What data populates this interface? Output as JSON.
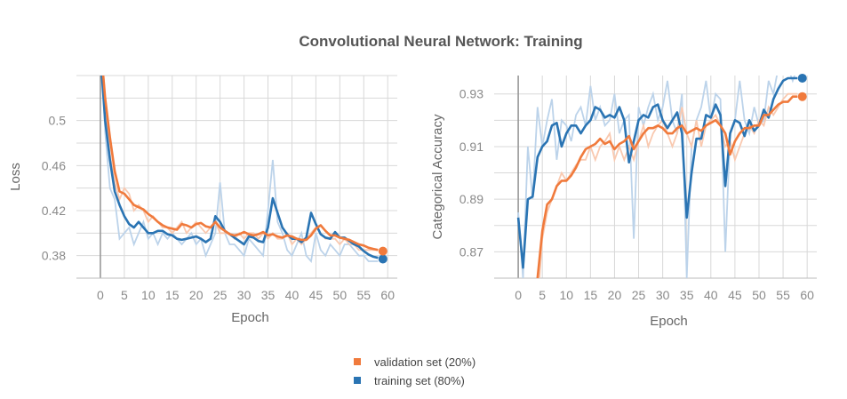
{
  "title": "Convolutional Neural Network: Training",
  "colors": {
    "validation": "#f07a3c",
    "training": "#2a74b3",
    "validation_raw": "#f9c9b0",
    "training_raw": "#bcd3ea",
    "grid": "#d8d8d8",
    "zero_line": "#999999"
  },
  "legend": {
    "placement": "bottom-center",
    "items": [
      {
        "label": "validation set (20%)",
        "color": "#f07a3c"
      },
      {
        "label": "training set (80%)",
        "color": "#2a74b3"
      }
    ]
  },
  "chart_data": [
    {
      "type": "line",
      "xlabel": "Epoch",
      "ylabel": "Loss",
      "xlim": [
        -5,
        62
      ],
      "ylim": [
        0.36,
        0.54
      ],
      "xticks": [
        0,
        5,
        10,
        15,
        20,
        25,
        30,
        35,
        40,
        45,
        50,
        55,
        60
      ],
      "yticks": [
        0.38,
        0.42,
        0.46,
        0.5
      ],
      "ytick_labels": [
        "0.38",
        "0.42",
        "0.46",
        "0.5"
      ],
      "grid": true,
      "series": [
        {
          "name": "training set (80%)",
          "color": "#2a74b3",
          "raw": [
            0.58,
            0.49,
            0.44,
            0.43,
            0.395,
            0.4,
            0.405,
            0.39,
            0.4,
            0.41,
            0.395,
            0.4,
            0.39,
            0.4,
            0.395,
            0.4,
            0.395,
            0.39,
            0.395,
            0.4,
            0.39,
            0.395,
            0.38,
            0.39,
            0.4,
            0.445,
            0.4,
            0.39,
            0.39,
            0.385,
            0.38,
            0.395,
            0.39,
            0.385,
            0.38,
            0.42,
            0.465,
            0.41,
            0.4,
            0.385,
            0.38,
            0.39,
            0.4,
            0.38,
            0.375,
            0.4,
            0.385,
            0.38,
            0.39,
            0.385,
            0.38,
            0.39,
            0.39,
            0.385,
            0.38,
            0.38,
            0.375,
            0.375,
            0.375
          ],
          "smoothed": [
            0.56,
            0.5,
            0.465,
            0.437,
            0.425,
            0.415,
            0.408,
            0.405,
            0.41,
            0.405,
            0.4,
            0.4,
            0.402,
            0.402,
            0.399,
            0.398,
            0.395,
            0.394,
            0.395,
            0.396,
            0.397,
            0.395,
            0.392,
            0.395,
            0.415,
            0.41,
            0.402,
            0.399,
            0.396,
            0.393,
            0.39,
            0.397,
            0.396,
            0.393,
            0.392,
            0.405,
            0.431,
            0.418,
            0.405,
            0.399,
            0.395,
            0.395,
            0.392,
            0.396,
            0.418,
            0.408,
            0.399,
            0.396,
            0.395,
            0.401,
            0.396,
            0.396,
            0.393,
            0.39,
            0.388,
            0.384,
            0.381,
            0.379,
            0.378
          ],
          "final_marker": [
            59,
            0.377
          ]
        },
        {
          "name": "validation set (20%)",
          "color": "#f07a3c",
          "raw": [
            0.58,
            0.52,
            0.47,
            0.445,
            0.43,
            0.44,
            0.435,
            0.42,
            0.425,
            0.42,
            0.41,
            0.415,
            0.41,
            0.405,
            0.405,
            0.4,
            0.405,
            0.41,
            0.4,
            0.405,
            0.41,
            0.405,
            0.4,
            0.405,
            0.41,
            0.4,
            0.4,
            0.4,
            0.395,
            0.4,
            0.395,
            0.4,
            0.4,
            0.395,
            0.4,
            0.395,
            0.4,
            0.395,
            0.395,
            0.4,
            0.39,
            0.395,
            0.39,
            0.395,
            0.4,
            0.405,
            0.4,
            0.395,
            0.395,
            0.395,
            0.39,
            0.395,
            0.39,
            0.39,
            0.385,
            0.385,
            0.385,
            0.385,
            0.385
          ],
          "smoothed": [
            0.57,
            0.52,
            0.485,
            0.455,
            0.437,
            0.435,
            0.43,
            0.425,
            0.423,
            0.421,
            0.417,
            0.414,
            0.41,
            0.407,
            0.405,
            0.404,
            0.403,
            0.408,
            0.407,
            0.405,
            0.408,
            0.409,
            0.406,
            0.405,
            0.41,
            0.405,
            0.402,
            0.399,
            0.398,
            0.399,
            0.401,
            0.399,
            0.398,
            0.399,
            0.401,
            0.398,
            0.399,
            0.397,
            0.396,
            0.398,
            0.397,
            0.395,
            0.394,
            0.394,
            0.398,
            0.404,
            0.407,
            0.402,
            0.398,
            0.398,
            0.396,
            0.395,
            0.394,
            0.392,
            0.39,
            0.389,
            0.387,
            0.386,
            0.385
          ],
          "final_marker": [
            59,
            0.384
          ]
        }
      ]
    },
    {
      "type": "line",
      "xlabel": "Epoch",
      "ylabel": "Categorical Accuracy",
      "xlim": [
        -5,
        62
      ],
      "ylim": [
        0.86,
        0.937
      ],
      "xticks": [
        0,
        5,
        10,
        15,
        20,
        25,
        30,
        35,
        40,
        45,
        50,
        55,
        60
      ],
      "yticks": [
        0.87,
        0.89,
        0.91,
        0.93
      ],
      "ytick_labels": [
        "0.87",
        "0.89",
        "0.91",
        "0.93"
      ],
      "grid": true,
      "series": [
        {
          "name": "training set (80%)",
          "color": "#2a74b3",
          "raw": [
            0.885,
            0.86,
            0.91,
            0.89,
            0.925,
            0.91,
            0.92,
            0.928,
            0.905,
            0.92,
            0.918,
            0.912,
            0.922,
            0.925,
            0.918,
            0.933,
            0.92,
            0.925,
            0.918,
            0.92,
            0.93,
            0.915,
            0.92,
            0.922,
            0.875,
            0.925,
            0.918,
            0.925,
            0.93,
            0.92,
            0.925,
            0.935,
            0.92,
            0.915,
            0.93,
            0.86,
            0.91,
            0.92,
            0.925,
            0.935,
            0.92,
            0.93,
            0.928,
            0.87,
            0.915,
            0.92,
            0.935,
            0.92,
            0.915,
            0.925,
            0.918,
            0.92,
            0.935,
            0.93,
            0.94,
            0.94,
            0.94,
            0.935,
            0.94
          ],
          "smoothed": [
            0.883,
            0.864,
            0.89,
            0.891,
            0.906,
            0.91,
            0.912,
            0.918,
            0.919,
            0.91,
            0.915,
            0.918,
            0.918,
            0.915,
            0.918,
            0.92,
            0.925,
            0.924,
            0.921,
            0.922,
            0.921,
            0.925,
            0.92,
            0.904,
            0.912,
            0.92,
            0.922,
            0.921,
            0.925,
            0.926,
            0.92,
            0.917,
            0.92,
            0.923,
            0.915,
            0.883,
            0.9,
            0.913,
            0.913,
            0.922,
            0.921,
            0.926,
            0.922,
            0.895,
            0.915,
            0.92,
            0.919,
            0.914,
            0.92,
            0.916,
            0.918,
            0.924,
            0.921,
            0.928,
            0.932,
            0.935,
            0.936,
            0.936,
            0.936
          ],
          "final_marker": [
            59,
            0.936
          ]
        },
        {
          "name": "validation set (20%)",
          "color": "#f07a3c",
          "raw": [
            null,
            null,
            null,
            null,
            0.85,
            0.875,
            0.885,
            0.89,
            0.895,
            0.9,
            0.897,
            0.9,
            0.903,
            0.905,
            0.905,
            0.91,
            0.905,
            0.91,
            0.912,
            0.915,
            0.905,
            0.91,
            0.905,
            0.91,
            0.905,
            0.912,
            0.918,
            0.91,
            0.915,
            0.918,
            0.92,
            0.915,
            0.91,
            0.915,
            0.925,
            0.915,
            0.91,
            0.92,
            0.91,
            0.918,
            0.92,
            0.922,
            0.918,
            0.91,
            0.912,
            0.905,
            0.91,
            0.915,
            0.918,
            0.915,
            0.92,
            0.918,
            0.925,
            0.922,
            0.925,
            0.928,
            0.93,
            0.93,
            0.93
          ],
          "smoothed": [
            null,
            null,
            null,
            null,
            0.86,
            0.878,
            0.888,
            0.89,
            0.895,
            0.897,
            0.897,
            0.899,
            0.902,
            0.906,
            0.909,
            0.91,
            0.911,
            0.913,
            0.911,
            0.912,
            0.909,
            0.911,
            0.912,
            0.914,
            0.909,
            0.912,
            0.915,
            0.917,
            0.917,
            0.918,
            0.917,
            0.915,
            0.915,
            0.917,
            0.918,
            0.915,
            0.916,
            0.917,
            0.916,
            0.918,
            0.919,
            0.92,
            0.918,
            0.915,
            0.907,
            0.912,
            0.915,
            0.917,
            0.917,
            0.918,
            0.918,
            0.922,
            0.922,
            0.924,
            0.926,
            0.927,
            0.927,
            0.929,
            0.929
          ],
          "final_marker": [
            59,
            0.929
          ]
        }
      ]
    }
  ]
}
